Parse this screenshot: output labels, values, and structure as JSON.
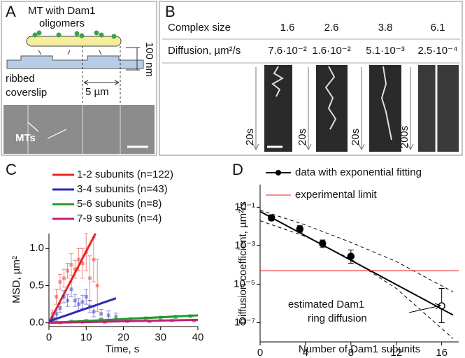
{
  "panel_a": {
    "label": "A",
    "diagram_title": [
      "MT with Dam1",
      "oligomers"
    ],
    "height_label": "100 nm",
    "substrate_label": [
      "ribbed",
      "coverslip"
    ],
    "width_label": "5 µm",
    "image_label": "MTs"
  },
  "panel_b": {
    "label": "B",
    "table": {
      "rows": [
        [
          "Complex size",
          "1.6",
          "2.6",
          "3.8",
          "6.1"
        ],
        [
          "Diffusion, µm²/s",
          "7.6·10⁻²",
          "1.6·10⁻²",
          "5.1·10⁻³",
          "2.5·10⁻⁴"
        ]
      ]
    },
    "time_labels": [
      "20s",
      "20s",
      "20s",
      "200s"
    ]
  },
  "chart_data": [
    {
      "type": "scatter",
      "panel_label": "C",
      "xlabel": "Time, s",
      "ylabel": "MSD, µm²",
      "xlim": [
        0,
        40
      ],
      "xticks": [
        0,
        10,
        20,
        30,
        40
      ],
      "ylim": [
        -0.05,
        1.2
      ],
      "yticks": [
        {
          "value": 0,
          "label": "0.0"
        },
        {
          "value": 0.5,
          "label": "0.5"
        },
        {
          "value": 1,
          "label": "1.0"
        }
      ],
      "series": [
        {
          "name": "1-2 subunits (n=122)",
          "color": "#e8251f",
          "x": [
            1,
            2,
            3,
            4,
            5,
            6,
            7,
            8,
            9,
            10,
            11,
            12,
            13
          ],
          "values": [
            0.12,
            0.35,
            0.55,
            0.6,
            0.7,
            0.78,
            0.72,
            0.85,
            0.8,
            0.95,
            0.6,
            0.85,
            0.5
          ],
          "errors": [
            0.05,
            0.1,
            0.1,
            0.12,
            0.1,
            0.15,
            0.12,
            0.15,
            0.2,
            0.25,
            0.3,
            0.3,
            0.35
          ],
          "fit_x": [
            0,
            12.5
          ],
          "fit_values": [
            0,
            1.2
          ]
        },
        {
          "name": "3-4 subunits (n=43)",
          "color": "#2a2ab8",
          "x": [
            1,
            2,
            3,
            4,
            5,
            6,
            7,
            8,
            9,
            10,
            11,
            12,
            14,
            16,
            18
          ],
          "values": [
            0.05,
            0.12,
            0.2,
            0.35,
            0.3,
            0.45,
            0.3,
            0.25,
            0.28,
            0.35,
            0.22,
            0.15,
            0.12,
            0.1,
            0.08
          ],
          "errors": [
            0.03,
            0.05,
            0.06,
            0.08,
            0.08,
            0.1,
            0.08,
            0.08,
            0.09,
            0.1,
            0.08,
            0.07,
            0.06,
            0.06,
            0.05
          ],
          "fit_x": [
            0,
            18
          ],
          "fit_values": [
            0.02,
            0.33
          ]
        },
        {
          "name": "5-6 subunits (n=8)",
          "color": "#1f9a2a",
          "x": [
            2,
            6,
            10,
            14,
            18,
            22,
            26,
            30,
            34,
            38
          ],
          "values": [
            0.01,
            0.02,
            0.03,
            0.04,
            0.04,
            0.05,
            0.06,
            0.07,
            0.08,
            0.09
          ],
          "errors": [
            0.01,
            0.01,
            0.01,
            0.015,
            0.015,
            0.02,
            0.02,
            0.02,
            0.02,
            0.02
          ],
          "fit_x": [
            0,
            40
          ],
          "fit_values": [
            0,
            0.1
          ]
        },
        {
          "name": "7-9 subunits (n=4)",
          "color": "#c0207a",
          "x": [
            3,
            9,
            15,
            21,
            27,
            33,
            39
          ],
          "values": [
            0.0,
            0.01,
            0.01,
            0.02,
            0.02,
            0.03,
            0.03
          ],
          "errors": [
            0.005,
            0.005,
            0.01,
            0.01,
            0.01,
            0.01,
            0.01
          ],
          "fit_x": [
            0,
            40
          ],
          "fit_values": [
            0,
            0.04
          ]
        }
      ]
    },
    {
      "type": "scatter",
      "panel_label": "D",
      "xlabel": "Number of Dam1 subunits",
      "ylabel": "Diffusion coefficient, µm²/s",
      "log_y": true,
      "xlim": [
        0,
        17.5
      ],
      "xticks": [
        0,
        4,
        8,
        12,
        16
      ],
      "ylim": [
        1e-08,
        1.5
      ],
      "yticks": [
        {
          "value": 0.1,
          "label": "10⁻¹"
        },
        {
          "value": 0.001,
          "label": "10⁻³"
        },
        {
          "value": 1e-05,
          "label": "10⁻⁵"
        },
        {
          "value": 1e-07,
          "label": "10⁻⁷"
        }
      ],
      "annotation": [
        "estimated Dam1",
        "ring diffusion"
      ],
      "series": [
        {
          "name": "data with exponential fitting",
          "color": "#000000",
          "x": [
            1,
            3.5,
            5.5,
            8,
            16
          ],
          "values": [
            0.028,
            0.0074,
            0.0013,
            0.00028,
            7.4e-07
          ],
          "ci_low": [
            0.02,
            0.005,
            0.0008,
            0.00012,
            1e-07
          ],
          "ci_high": [
            0.04,
            0.011,
            0.002,
            0.0006,
            6e-06
          ],
          "open": [
            false,
            false,
            false,
            false,
            true
          ],
          "fit_x": [
            0,
            17
          ],
          "fit_values": [
            0.06,
            2.5e-07
          ],
          "band_x": [
            0,
            4,
            8,
            12,
            17
          ],
          "band_upper": [
            0.07,
            0.012,
            0.0015,
            0.00015,
            4e-06
          ],
          "band_lower": [
            0.02,
            0.003,
            0.0002,
            6e-06,
            1.5e-08
          ]
        },
        {
          "name": "experimental limit",
          "color": "#e8251f",
          "values": [
            5e-05
          ]
        }
      ]
    }
  ]
}
